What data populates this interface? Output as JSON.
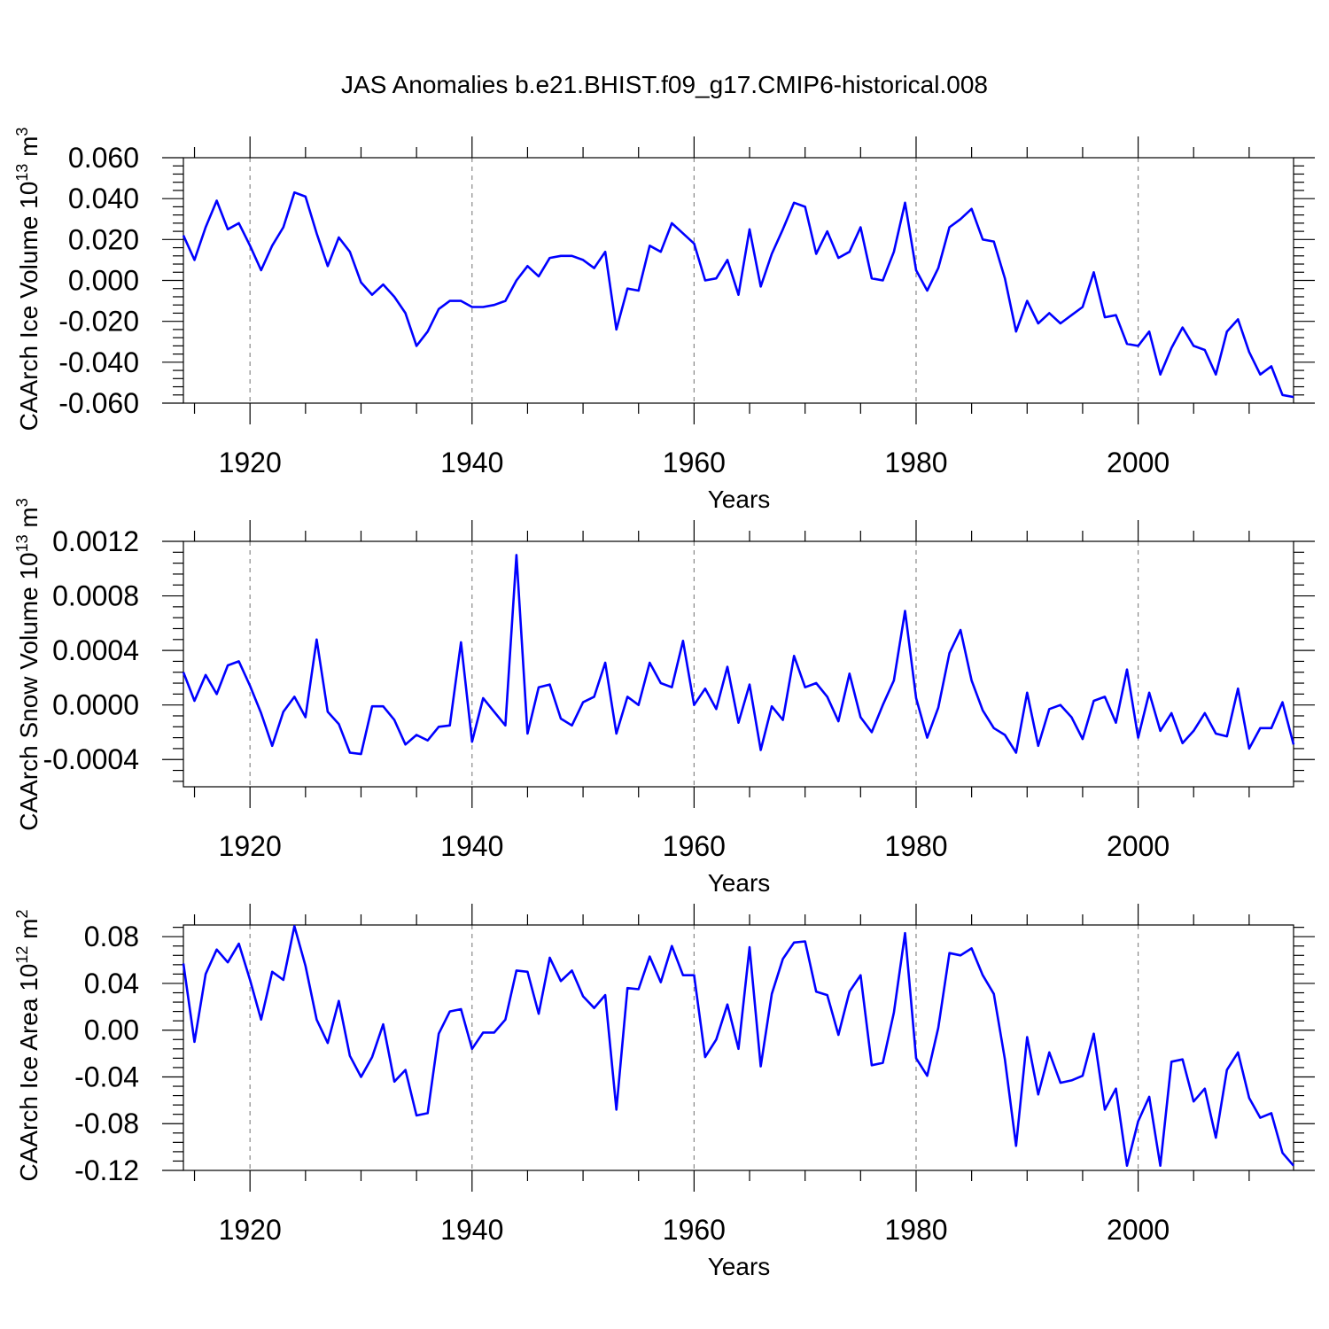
{
  "title": "JAS Anomalies b.e21.BHIST.f09_g17.CMIP6-historical.008",
  "chart_data": [
    {
      "type": "line",
      "ylabel": "CAArch Ice Volume 10",
      "ylabel_exp": "13",
      "ylabel_unit": " m",
      "ylabel_unit_exp": "3",
      "xlabel": "Years",
      "xlim": [
        1914,
        2014
      ],
      "ylim": [
        -0.06,
        0.06
      ],
      "yticks": [
        -0.06,
        -0.04,
        -0.02,
        0.0,
        0.02,
        0.04,
        0.06
      ],
      "ytick_labels": [
        "-0.060",
        "-0.040",
        "-0.020",
        "0.000",
        "0.020",
        "0.040",
        "0.060"
      ],
      "xticks": [
        1920,
        1940,
        1960,
        1980,
        2000
      ],
      "xtick_labels": [
        "1920",
        "1940",
        "1960",
        "1980",
        "2000"
      ],
      "x": [
        1914,
        1915,
        1916,
        1917,
        1918,
        1919,
        1920,
        1921,
        1922,
        1923,
        1924,
        1925,
        1926,
        1927,
        1928,
        1929,
        1930,
        1931,
        1932,
        1933,
        1934,
        1935,
        1936,
        1937,
        1938,
        1939,
        1940,
        1941,
        1942,
        1943,
        1944,
        1945,
        1946,
        1947,
        1948,
        1949,
        1950,
        1951,
        1952,
        1953,
        1954,
        1955,
        1956,
        1957,
        1958,
        1959,
        1960,
        1961,
        1962,
        1963,
        1964,
        1965,
        1966,
        1967,
        1968,
        1969,
        1970,
        1971,
        1972,
        1973,
        1974,
        1975,
        1976,
        1977,
        1978,
        1979,
        1980,
        1981,
        1982,
        1983,
        1984,
        1985,
        1986,
        1987,
        1988,
        1989,
        1990,
        1991,
        1992,
        1993,
        1994,
        1995,
        1996,
        1997,
        1998,
        1999,
        2000,
        2001,
        2002,
        2003,
        2004,
        2005,
        2006,
        2007,
        2008,
        2009,
        2010,
        2011,
        2012,
        2013,
        2014
      ],
      "values": [
        0.022,
        0.01,
        0.026,
        0.039,
        0.025,
        0.028,
        0.017,
        0.005,
        0.017,
        0.026,
        0.043,
        0.041,
        0.023,
        0.007,
        0.021,
        0.014,
        -0.001,
        -0.007,
        -0.002,
        -0.008,
        -0.016,
        -0.032,
        -0.025,
        -0.014,
        -0.01,
        -0.01,
        -0.013,
        -0.013,
        -0.012,
        -0.01,
        0.0,
        0.007,
        0.002,
        0.011,
        0.012,
        0.012,
        0.01,
        0.006,
        0.014,
        -0.024,
        -0.004,
        -0.005,
        0.017,
        0.014,
        0.028,
        0.023,
        0.018,
        0.0,
        0.001,
        0.01,
        -0.007,
        0.025,
        -0.003,
        0.013,
        0.025,
        0.038,
        0.036,
        0.013,
        0.024,
        0.011,
        0.014,
        0.026,
        0.001,
        0.0,
        0.014,
        0.038,
        0.005,
        -0.005,
        0.006,
        0.026,
        0.03,
        0.035,
        0.02,
        0.019,
        0.001,
        -0.025,
        -0.01,
        -0.021,
        -0.016,
        -0.021,
        -0.017,
        -0.013,
        0.004,
        -0.018,
        -0.017,
        -0.031,
        -0.032,
        -0.025,
        -0.046,
        -0.033,
        -0.023,
        -0.032,
        -0.034,
        -0.046,
        -0.025,
        -0.019,
        -0.035,
        -0.046,
        -0.042,
        -0.056,
        -0.057
      ]
    },
    {
      "type": "line",
      "ylabel": "CAArch Snow Volume 10",
      "ylabel_exp": "13",
      "ylabel_unit": " m",
      "ylabel_unit_exp": "3",
      "xlabel": "Years",
      "xlim": [
        1914,
        2014
      ],
      "ylim": [
        -0.0006,
        0.0012
      ],
      "yticks": [
        -0.0004,
        0.0,
        0.0004,
        0.0008,
        0.0012
      ],
      "ytick_labels": [
        "-0.0004",
        "0.0000",
        "0.0004",
        "0.0008",
        "0.0012"
      ],
      "xticks": [
        1920,
        1940,
        1960,
        1980,
        2000
      ],
      "xtick_labels": [
        "1920",
        "1940",
        "1960",
        "1980",
        "2000"
      ],
      "x": [
        1914,
        1915,
        1916,
        1917,
        1918,
        1919,
        1920,
        1921,
        1922,
        1923,
        1924,
        1925,
        1926,
        1927,
        1928,
        1929,
        1930,
        1931,
        1932,
        1933,
        1934,
        1935,
        1936,
        1937,
        1938,
        1939,
        1940,
        1941,
        1942,
        1943,
        1944,
        1945,
        1946,
        1947,
        1948,
        1949,
        1950,
        1951,
        1952,
        1953,
        1954,
        1955,
        1956,
        1957,
        1958,
        1959,
        1960,
        1961,
        1962,
        1963,
        1964,
        1965,
        1966,
        1967,
        1968,
        1969,
        1970,
        1971,
        1972,
        1973,
        1974,
        1975,
        1976,
        1977,
        1978,
        1979,
        1980,
        1981,
        1982,
        1983,
        1984,
        1985,
        1986,
        1987,
        1988,
        1989,
        1990,
        1991,
        1992,
        1993,
        1994,
        1995,
        1996,
        1997,
        1998,
        1999,
        2000,
        2001,
        2002,
        2003,
        2004,
        2005,
        2006,
        2007,
        2008,
        2009,
        2010,
        2011,
        2012,
        2013,
        2014
      ],
      "values": [
        0.00024,
        3e-05,
        0.00022,
        8e-05,
        0.00029,
        0.00032,
        0.00014,
        -6e-05,
        -0.0003,
        -5e-05,
        6e-05,
        -9e-05,
        0.00048,
        -5e-05,
        -0.00014,
        -0.00035,
        -0.00036,
        -1e-05,
        -1e-05,
        -0.00011,
        -0.00029,
        -0.00022,
        -0.00026,
        -0.00016,
        -0.00015,
        0.00046,
        -0.00027,
        5e-05,
        -5e-05,
        -0.00015,
        0.0011,
        -0.00021,
        0.00013,
        0.00015,
        -0.0001,
        -0.00015,
        2e-05,
        6e-05,
        0.00031,
        -0.00021,
        6e-05,
        0.0,
        0.00031,
        0.00016,
        0.00013,
        0.00047,
        0.0,
        0.00012,
        -3e-05,
        0.00028,
        -0.00013,
        0.00015,
        -0.00033,
        -1e-05,
        -0.00011,
        0.00036,
        0.00013,
        0.00016,
        6e-05,
        -0.00012,
        0.00023,
        -9e-05,
        -0.0002,
        0.0,
        0.00018,
        0.00069,
        5e-05,
        -0.00024,
        -2e-05,
        0.00038,
        0.00055,
        0.00018,
        -4e-05,
        -0.00017,
        -0.00022,
        -0.00035,
        9e-05,
        -0.0003,
        -3e-05,
        0.0,
        -9e-05,
        -0.00025,
        3e-05,
        6e-05,
        -0.00013,
        0.00026,
        -0.00024,
        9e-05,
        -0.00019,
        -6e-05,
        -0.00028,
        -0.00019,
        -6e-05,
        -0.00021,
        -0.00023,
        0.00012,
        -0.00032,
        -0.00017,
        -0.00017,
        2e-05,
        -0.00029
      ]
    },
    {
      "type": "line",
      "ylabel": "CAArch Ice Area 10",
      "ylabel_exp": "12",
      "ylabel_unit": " m",
      "ylabel_unit_exp": "2",
      "xlabel": "Years",
      "xlim": [
        1914,
        2014
      ],
      "ylim": [
        -0.12,
        0.09
      ],
      "yticks": [
        -0.12,
        -0.08,
        -0.04,
        0.0,
        0.04,
        0.08
      ],
      "ytick_labels": [
        "-0.12",
        "-0.08",
        "-0.04",
        "0.00",
        "0.04",
        "0.08"
      ],
      "xticks": [
        1920,
        1940,
        1960,
        1980,
        2000
      ],
      "xtick_labels": [
        "1920",
        "1940",
        "1960",
        "1980",
        "2000"
      ],
      "x": [
        1914,
        1915,
        1916,
        1917,
        1918,
        1919,
        1920,
        1921,
        1922,
        1923,
        1924,
        1925,
        1926,
        1927,
        1928,
        1929,
        1930,
        1931,
        1932,
        1933,
        1934,
        1935,
        1936,
        1937,
        1938,
        1939,
        1940,
        1941,
        1942,
        1943,
        1944,
        1945,
        1946,
        1947,
        1948,
        1949,
        1950,
        1951,
        1952,
        1953,
        1954,
        1955,
        1956,
        1957,
        1958,
        1959,
        1960,
        1961,
        1962,
        1963,
        1964,
        1965,
        1966,
        1967,
        1968,
        1969,
        1970,
        1971,
        1972,
        1973,
        1974,
        1975,
        1976,
        1977,
        1978,
        1979,
        1980,
        1981,
        1982,
        1983,
        1984,
        1985,
        1986,
        1987,
        1988,
        1989,
        1990,
        1991,
        1992,
        1993,
        1994,
        1995,
        1996,
        1997,
        1998,
        1999,
        2000,
        2001,
        2002,
        2003,
        2004,
        2005,
        2006,
        2007,
        2008,
        2009,
        2010,
        2011,
        2012,
        2013,
        2014
      ],
      "values": [
        0.057,
        -0.01,
        0.048,
        0.069,
        0.058,
        0.074,
        0.043,
        0.009,
        0.05,
        0.043,
        0.089,
        0.055,
        0.009,
        -0.011,
        0.025,
        -0.022,
        -0.04,
        -0.023,
        0.005,
        -0.044,
        -0.034,
        -0.073,
        -0.071,
        -0.003,
        0.016,
        0.018,
        -0.016,
        -0.002,
        -0.002,
        0.009,
        0.051,
        0.05,
        0.014,
        0.062,
        0.042,
        0.051,
        0.029,
        0.019,
        0.03,
        -0.068,
        0.036,
        0.035,
        0.063,
        0.041,
        0.072,
        0.047,
        0.047,
        -0.023,
        -0.008,
        0.022,
        -0.016,
        0.071,
        -0.031,
        0.031,
        0.061,
        0.075,
        0.076,
        0.033,
        0.03,
        -0.004,
        0.033,
        0.047,
        -0.03,
        -0.028,
        0.015,
        0.083,
        -0.024,
        -0.039,
        0.002,
        0.066,
        0.064,
        0.07,
        0.047,
        0.031,
        -0.025,
        -0.099,
        -0.006,
        -0.055,
        -0.019,
        -0.045,
        -0.043,
        -0.039,
        -0.003,
        -0.068,
        -0.05,
        -0.116,
        -0.078,
        -0.057,
        -0.116,
        -0.027,
        -0.025,
        -0.061,
        -0.05,
        -0.092,
        -0.034,
        -0.019,
        -0.058,
        -0.075,
        -0.071,
        -0.105,
        -0.116
      ]
    }
  ]
}
